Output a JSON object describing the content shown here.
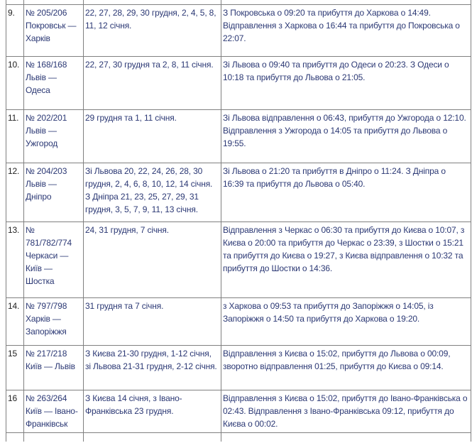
{
  "table": {
    "column_semantics": [
      "row-number",
      "train-number-and-route",
      "running-dates",
      "timetable-details"
    ],
    "rows": [
      {
        "num": "9.",
        "train": "№ 205/206 Покровськ — Харків",
        "dates": "22, 27, 28, 29, 30 грудня, 2, 4, 5, 8, 11, 12 січня.",
        "schedule": "З Покровська о 09:20 та прибуття до Харкова о 14:49. Відправлення з Харкова о 16:44 та прибуття до Покровська о 22:07."
      },
      {
        "num": "10.",
        "train": "№ 168/168 Львів — Одеса",
        "dates": "22, 27, 30 грудня та 2, 8, 11 січня.",
        "schedule": "Зі Львова о 09:40 та прибуття до Одеси о 20:23. З Одеси о 10:18 та прибуття до Львова о 21:05."
      },
      {
        "num": "11.",
        "train": "№ 202/201 Львів — Ужгород",
        "dates": "29 грудня та 1, 11 січня.",
        "schedule": "Зі Львова відправлення о 06:43, прибуття до Ужгорода о 12:10. Відправлення з Ужгорода о 14:05 та прибуття до Львова о 19:55."
      },
      {
        "num": "12.",
        "train": "№ 204/203 Львів — Дніпро",
        "dates": "Зі Львова 20, 22, 24, 26, 28, 30 грудня, 2, 4, 6, 8, 10, 12, 14 січня. З Дніпра 21, 23, 25, 27, 29, 31 грудня, 3, 5, 7, 9, 11, 13 січня.",
        "schedule": "Зі Львова о 21:20 та прибуття в Дніпро о 11:24. З Дніпра о 16:39 та прибуття до Львова о 05:40."
      },
      {
        "num": "13.",
        "train": "№ 781/782/774 Черкаси — Київ — Шостка",
        "dates": "24, 31 грудня, 7 січня.",
        "schedule": "Відправлення з Черкас о 06:30 та прибуття до Києва о 10:07, з Києва о 20:00 та прибуття до Черкас о 23:39, з Шостки о 15:21 та прибуття до Києва о 19:27, з Києва відправлення о 10:32 та прибуття до Шостки о 14:36."
      },
      {
        "num": "14.",
        "train": "№ 797/798 Харків — Запоріжжя",
        "dates": "31 грудня та 7 січня.",
        "schedule": "з Харкова о 09:53 та прибуття до Запоріжжя о 14:05, із Запоріжжя о 14:50 та прибуття до Харкова о 19:20."
      },
      {
        "num": "15",
        "train": "№ 217/218 Київ — Львів",
        "dates": "З Києва 21-30 грудня, 1-12 січня, зі Львова 21-31 грудня, 2-12 січня.",
        "schedule": "Відправлення з Києва о 15:02, прибуття до Львова о 00:09, зворотно відправлення 01:25, прибуття до Києва о 09:14."
      },
      {
        "num": "16",
        "train": "№ 263/264 Київ — Івано-Франківськ",
        "dates": "З Києва 14 січня, з Івано-Франківська 23 грудня.",
        "schedule": "Відправлення з Києва о 15:02, прибуття до Івано-Франківська о 02:43. Відправлення з Івано-Франківська 09:12, прибуття до Києва о 00:02."
      }
    ]
  },
  "colors": {
    "text": "#2b3874",
    "row_number_text": "#222222",
    "border": "#808080",
    "background": "#ffffff"
  }
}
